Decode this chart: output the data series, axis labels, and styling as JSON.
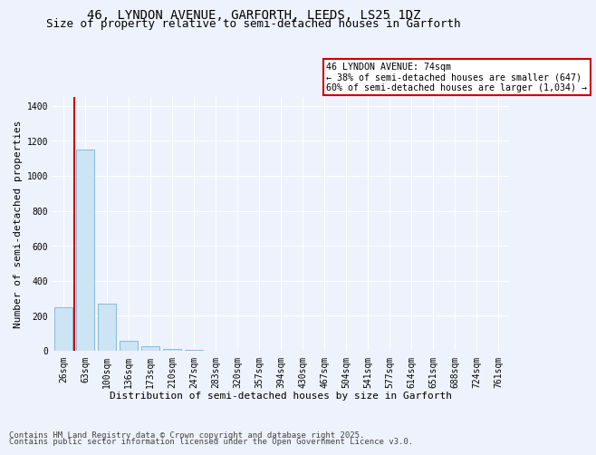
{
  "title1": "46, LYNDON AVENUE, GARFORTH, LEEDS, LS25 1DZ",
  "title2": "Size of property relative to semi-detached houses in Garforth",
  "xlabel": "Distribution of semi-detached houses by size in Garforth",
  "ylabel": "Number of semi-detached properties",
  "categories": [
    "26sqm",
    "63sqm",
    "100sqm",
    "136sqm",
    "173sqm",
    "210sqm",
    "247sqm",
    "283sqm",
    "320sqm",
    "357sqm",
    "394sqm",
    "430sqm",
    "467sqm",
    "504sqm",
    "541sqm",
    "577sqm",
    "614sqm",
    "651sqm",
    "688sqm",
    "724sqm",
    "761sqm"
  ],
  "values": [
    248,
    1150,
    270,
    55,
    25,
    8,
    3,
    0,
    0,
    0,
    0,
    0,
    0,
    0,
    0,
    0,
    0,
    0,
    0,
    0,
    0
  ],
  "bar_color": "#cce4f4",
  "bar_edge_color": "#7ab3d4",
  "property_line_x": 0.5,
  "annotation_text": "46 LYNDON AVENUE: 74sqm\n← 38% of semi-detached houses are smaller (647)\n60% of semi-detached houses are larger (1,034) →",
  "annotation_box_color": "#ffffff",
  "annotation_box_edge": "#cc0000",
  "line_color": "#cc0000",
  "ylim": [
    0,
    1450
  ],
  "yticks": [
    0,
    200,
    400,
    600,
    800,
    1000,
    1200,
    1400
  ],
  "background_color": "#eef2fc",
  "footer1": "Contains HM Land Registry data © Crown copyright and database right 2025.",
  "footer2": "Contains public sector information licensed under the Open Government Licence v3.0.",
  "title1_fontsize": 10,
  "title2_fontsize": 9,
  "axis_fontsize": 8,
  "tick_fontsize": 7,
  "footer_fontsize": 6.5
}
